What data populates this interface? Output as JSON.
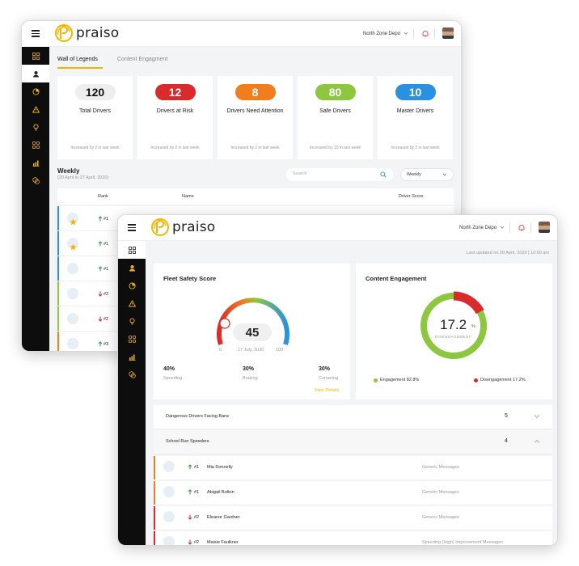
{
  "brand": {
    "name": "praiso",
    "accent": "#f5b400"
  },
  "header": {
    "depot": "North Zone Depo",
    "bell_icon": "bell-icon",
    "menu_icon": "hamburger-icon"
  },
  "sidebar_icons": [
    "dashboard-icon",
    "user-icon",
    "pie-icon",
    "warning-icon",
    "lightbulb-icon",
    "grid-icon",
    "chart-icon",
    "coins-icon"
  ],
  "legends": {
    "tabs": [
      "Wall of Legends",
      "Content Engagment"
    ],
    "stats": [
      {
        "value": "120",
        "label": "Total Drivers",
        "sub": "Increased by 2 in last week",
        "color": "#eeeeee",
        "text_color": "#111111"
      },
      {
        "value": "12",
        "label": "Drivers at Risk",
        "sub": "Increased by 2 in last week",
        "color": "#d92b2b",
        "text_color": "#ffffff"
      },
      {
        "value": "8",
        "label": "Drivers Need Attention",
        "sub": "Increased by 2 in last week",
        "color": "#f07e1f",
        "text_color": "#ffffff"
      },
      {
        "value": "80",
        "label": "Safe Drivers",
        "sub": "Increased by 10 in last week",
        "color": "#8dc63f",
        "text_color": "#ffffff"
      },
      {
        "value": "10",
        "label": "Master Drivers",
        "sub": "Increased by 2 in last week",
        "color": "#2a90e0",
        "text_color": "#ffffff"
      }
    ],
    "weekly": {
      "title": "Weekly",
      "range": "(20 April to 27 April, 2020)",
      "search_placeholder": "Search",
      "period": "Weekly"
    },
    "columns": {
      "rank": "Rank",
      "name": "Name",
      "score": "Driver Score"
    },
    "rows": [
      {
        "star": true,
        "rank": "#1",
        "dir": "up",
        "bar": "#2a90e0"
      },
      {
        "star": true,
        "rank": "#1",
        "dir": "up",
        "bar": "#2a90e0"
      },
      {
        "star": false,
        "rank": "#1",
        "dir": "up",
        "bar": "#2a90e0"
      },
      {
        "star": false,
        "rank": "#2",
        "dir": "down",
        "bar": "#8dc63f"
      },
      {
        "star": false,
        "rank": "#2",
        "dir": "down",
        "bar": "#8dc63f"
      },
      {
        "star": false,
        "rank": "#3",
        "dir": "up",
        "bar": "#f07e1f"
      }
    ]
  },
  "dashboard": {
    "last_updated": "Last updated on 20 April, 2020 | 10:00 am",
    "fleet": {
      "title": "Fleet Safety Score",
      "score": "45",
      "date": "17 July, 2020",
      "min": "0",
      "max": "100",
      "metrics": [
        {
          "value": "40%",
          "label": "Speeding"
        },
        {
          "value": "30%",
          "label": "Braking"
        },
        {
          "value": "30%",
          "label": "Cornering"
        }
      ],
      "link": "View Details"
    },
    "engagement": {
      "title": "Content Engagement",
      "value": "17.2",
      "unit": "%",
      "caption": "DISENGAGEMENT",
      "engaged_pct": 82.8,
      "disengaged_pct": 17.2,
      "engaged_label": "Engagement 82.8%",
      "disengaged_label": "Disengagement 17.2%",
      "engaged_color": "#8dc63f",
      "disengaged_color": "#d92b2b"
    },
    "sections": [
      {
        "label": "Dangerous Drivers Facing Bans",
        "count": "5",
        "open": false
      },
      {
        "label": "School Run Speeders",
        "count": "4",
        "open": true
      }
    ],
    "drivers": [
      {
        "rank": "#1",
        "dir": "up",
        "name": "Mia Donnelly",
        "message": "Generic Messages",
        "bar": "#f07e1f"
      },
      {
        "rank": "#1",
        "dir": "up",
        "name": "Abigail Bolton",
        "message": "Generic Messages",
        "bar": "#f07e1f"
      },
      {
        "rank": "#2",
        "dir": "down",
        "name": "Eleanor Gardner",
        "message": "Generic Messages",
        "bar": "#d92b2b"
      },
      {
        "rank": "#2",
        "dir": "down",
        "name": "Maisie Faulkner",
        "message": "Speeding (High) Improvement Messages",
        "bar": "#d92b2b"
      }
    ]
  }
}
